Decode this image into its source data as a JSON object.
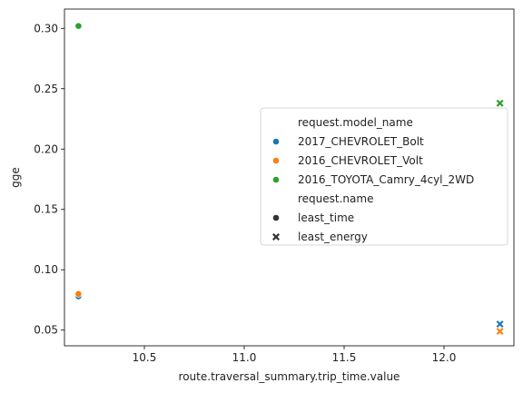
{
  "chart_data": {
    "type": "scatter",
    "xlabel": "route.traversal_summary.trip_time.value",
    "ylabel": "gge",
    "xlim": [
      10.1,
      12.35
    ],
    "ylim": [
      0.037,
      0.316
    ],
    "xticks": [
      10.5,
      11.0,
      11.5,
      12.0
    ],
    "yticks": [
      0.05,
      0.1,
      0.15,
      0.2,
      0.25,
      0.3
    ],
    "grid": false,
    "legend_position": "center-right",
    "legend": {
      "hue_title": "request.model_name",
      "style_title": "request.name",
      "hue_entries": [
        {
          "name": "2017_CHEVROLET_Bolt",
          "color": "#1f77b4"
        },
        {
          "name": "2016_CHEVROLET_Volt",
          "color": "#ff7f0e"
        },
        {
          "name": "2016_TOYOTA_Camry_4cyl_2WD",
          "color": "#2ca02c"
        }
      ],
      "style_entries": [
        {
          "name": "least_time",
          "marker": "circle"
        },
        {
          "name": "least_energy",
          "marker": "x"
        }
      ]
    },
    "series": [
      {
        "model": "2017_CHEVROLET_Bolt",
        "request": "least_time",
        "color": "#1f77b4",
        "marker": "circle",
        "x": 10.17,
        "y": 0.078
      },
      {
        "model": "2016_CHEVROLET_Volt",
        "request": "least_time",
        "color": "#ff7f0e",
        "marker": "circle",
        "x": 10.17,
        "y": 0.08
      },
      {
        "model": "2016_TOYOTA_Camry_4cyl_2WD",
        "request": "least_time",
        "color": "#2ca02c",
        "marker": "circle",
        "x": 10.17,
        "y": 0.302
      },
      {
        "model": "2017_CHEVROLET_Bolt",
        "request": "least_energy",
        "color": "#1f77b4",
        "marker": "x",
        "x": 12.28,
        "y": 0.055
      },
      {
        "model": "2016_CHEVROLET_Volt",
        "request": "least_energy",
        "color": "#ff7f0e",
        "marker": "x",
        "x": 12.28,
        "y": 0.049
      },
      {
        "model": "2016_TOYOTA_Camry_4cyl_2WD",
        "request": "least_energy",
        "color": "#2ca02c",
        "marker": "x",
        "x": 12.28,
        "y": 0.238
      }
    ]
  }
}
